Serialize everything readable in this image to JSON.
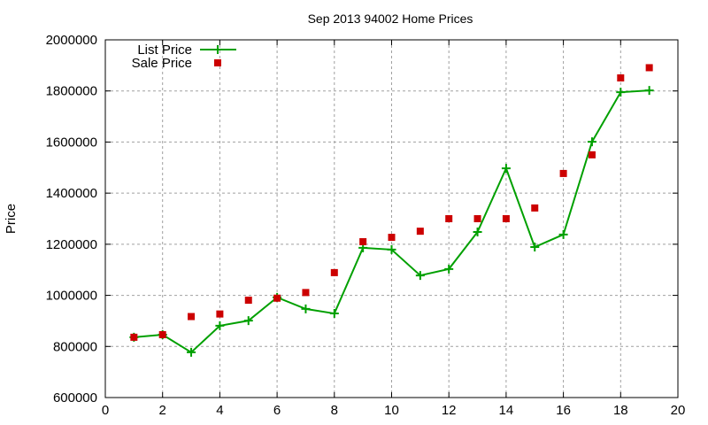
{
  "chart_data": {
    "type": "line",
    "title": "Sep 2013 94002 Home Prices",
    "xlabel": "",
    "ylabel": "Price",
    "xlim": [
      0,
      20
    ],
    "ylim": [
      600000,
      2000000
    ],
    "x_ticks": [
      0,
      2,
      4,
      6,
      8,
      10,
      12,
      14,
      16,
      18,
      20
    ],
    "y_ticks": [
      600000,
      800000,
      1000000,
      1200000,
      1400000,
      1600000,
      1800000,
      2000000
    ],
    "grid": true,
    "legend_position": "top-left",
    "x": [
      1,
      2,
      3,
      4,
      5,
      6,
      7,
      8,
      9,
      10,
      11,
      12,
      13,
      14,
      15,
      16,
      17,
      18,
      19
    ],
    "series": [
      {
        "name": "List Price",
        "style": "linespoints",
        "color": "#00a000",
        "values": [
          836000,
          846000,
          777000,
          881000,
          901000,
          992000,
          947000,
          929000,
          1186000,
          1179000,
          1078000,
          1103000,
          1248000,
          1497000,
          1189000,
          1238000,
          1601000,
          1795000,
          1802000
        ]
      },
      {
        "name": "Sale Price",
        "style": "points",
        "color": "#cc0000",
        "values": [
          836000,
          846000,
          917000,
          927000,
          981000,
          989000,
          1011000,
          1089000,
          1210000,
          1227000,
          1251000,
          1300000,
          1300000,
          1300000,
          1342000,
          1477000,
          1550000,
          1851000,
          1891000
        ]
      }
    ]
  }
}
